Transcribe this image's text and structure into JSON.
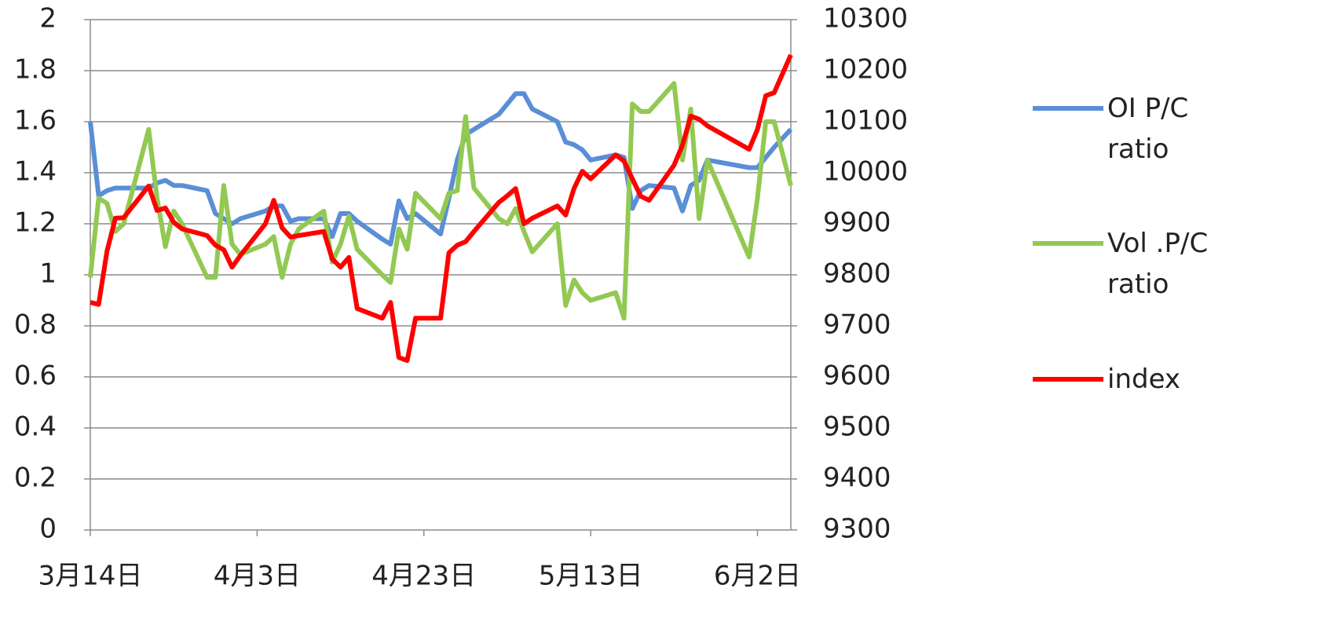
{
  "chart_data": {
    "type": "line",
    "x": [
      "3月14日",
      "3月15日",
      "3月16日",
      "3月17日",
      "3月18日",
      "3月21日",
      "3月22日",
      "3月23日",
      "3月24日",
      "3月25日",
      "3月28日",
      "3月29日",
      "3月30日",
      "3月31日",
      "4月1日",
      "4月4日",
      "4月5日",
      "4月6日",
      "4月7日",
      "4月8日",
      "4月11日",
      "4月12日",
      "4月13日",
      "4月14日",
      "4月15日",
      "4月18日",
      "4月19日",
      "4月20日",
      "4月21日",
      "4月22日",
      "4月25日",
      "4月26日",
      "4月27日",
      "4月28日",
      "4月29日",
      "5月2日",
      "5月3日",
      "5月4日",
      "5月5日",
      "5月6日",
      "5月9日",
      "5月10日",
      "5月11日",
      "5月12日",
      "5月13日",
      "5月16日",
      "5月17日",
      "5月18日",
      "5月19日",
      "5月20日",
      "5月23日",
      "5月24日",
      "5月25日",
      "5月26日",
      "5月27日",
      "6月1日",
      "6月2日",
      "6月3日",
      "6月4日",
      "6月6日"
    ],
    "xlim": [
      "3月14日",
      "6月6日"
    ],
    "xticks": [
      "3月14日",
      "4月3日",
      "4月23日",
      "5月13日",
      "6月2日"
    ],
    "ylim": [
      0,
      2
    ],
    "yticks": [
      0,
      0.2,
      0.4,
      0.6,
      0.8,
      1,
      1.2,
      1.4,
      1.6,
      1.8,
      2
    ],
    "y2lim": [
      9300,
      10300
    ],
    "y2ticks": [
      9300,
      9400,
      9500,
      9600,
      9700,
      9800,
      9900,
      10000,
      10100,
      10200,
      10300
    ],
    "grid": true,
    "legend": "right",
    "series": [
      {
        "name": "OI P/C ratio",
        "color": "#5a8ed6",
        "values": [
          1.6,
          1.31,
          1.33,
          1.34,
          1.34,
          1.34,
          1.36,
          1.37,
          1.35,
          1.35,
          1.33,
          1.24,
          1.22,
          1.2,
          1.22,
          1.25,
          1.27,
          1.27,
          1.21,
          1.22,
          1.22,
          1.15,
          1.24,
          1.24,
          1.21,
          1.14,
          1.12,
          1.29,
          1.22,
          1.24,
          1.16,
          1.3,
          1.45,
          1.55,
          1.57,
          1.63,
          1.67,
          1.71,
          1.71,
          1.65,
          1.6,
          1.52,
          1.51,
          1.49,
          1.45,
          1.47,
          1.46,
          1.26,
          1.33,
          1.35,
          1.34,
          1.25,
          1.35,
          1.37,
          1.45,
          1.42,
          1.42,
          1.46,
          1.5,
          1.57
        ]
      },
      {
        "name": "Vol .P/C ratio",
        "color": "#92c952",
        "values": [
          0.99,
          1.3,
          1.28,
          1.17,
          1.2,
          1.57,
          1.3,
          1.11,
          1.25,
          1.2,
          0.99,
          0.99,
          1.35,
          1.12,
          1.08,
          1.12,
          1.15,
          0.99,
          1.12,
          1.18,
          1.25,
          1.05,
          1.12,
          1.23,
          1.1,
          1.0,
          0.97,
          1.18,
          1.1,
          1.32,
          1.22,
          1.32,
          1.33,
          1.62,
          1.34,
          1.22,
          1.2,
          1.26,
          1.17,
          1.09,
          1.2,
          0.88,
          0.98,
          0.93,
          0.9,
          0.93,
          0.83,
          1.67,
          1.64,
          1.64,
          1.75,
          1.45,
          1.65,
          1.22,
          1.45,
          1.07,
          1.3,
          1.6,
          1.6,
          1.35
        ]
      },
      {
        "name": "index",
        "color": "#ff0000",
        "axis": "y2",
        "values": [
          9746,
          9742,
          9846,
          9911,
          9912,
          9974,
          9926,
          9931,
          9903,
          9890,
          9877,
          9858,
          9849,
          9815,
          9838,
          9900,
          9946,
          9892,
          9874,
          9877,
          9885,
          9831,
          9815,
          9834,
          9734,
          9715,
          9746,
          9638,
          9632,
          9715,
          9715,
          9843,
          9858,
          9865,
          9885,
          9942,
          9955,
          9969,
          9900,
          9911,
          9935,
          9917,
          9969,
          10003,
          9988,
          10035,
          10023,
          9988,
          9954,
          9946,
          10015,
          10054,
          10111,
          10105,
          10092,
          10046,
          10085,
          10151,
          10157,
          10231
        ]
      }
    ]
  }
}
